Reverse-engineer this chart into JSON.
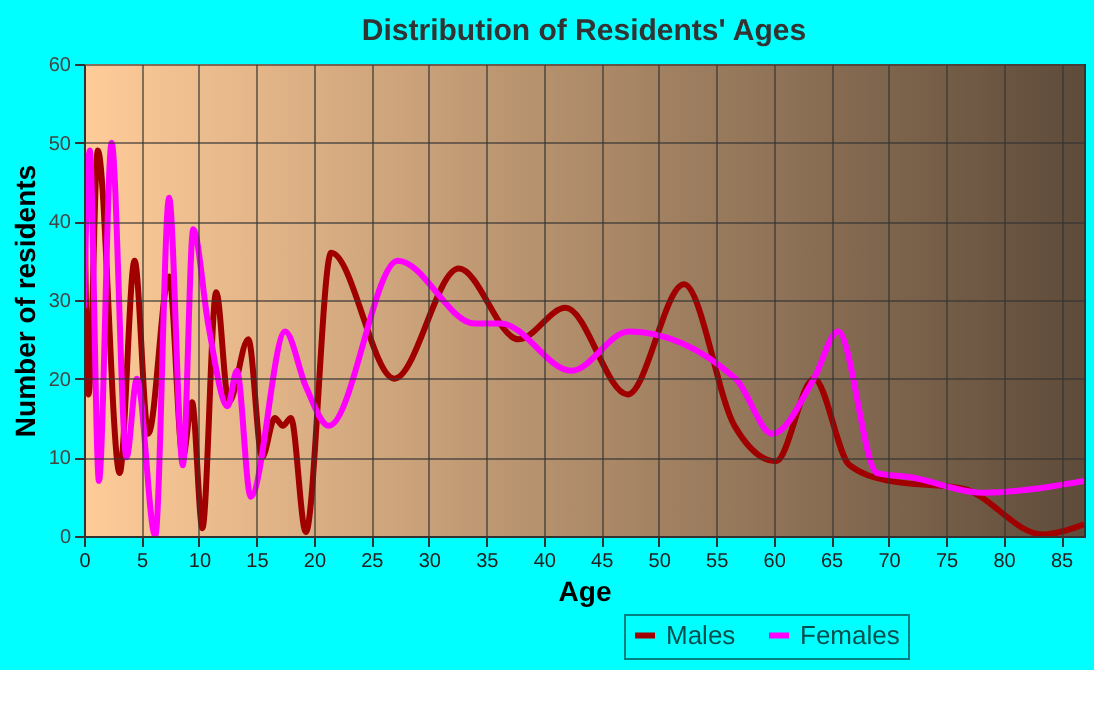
{
  "chart_data": {
    "type": "line",
    "title": "Distribution of Residents' Ages",
    "xlabel": "Age",
    "ylabel": "Number of residents",
    "xlim": [
      0,
      87
    ],
    "xticks": [
      0,
      5,
      10,
      15,
      20,
      25,
      30,
      35,
      40,
      45,
      50,
      55,
      60,
      65,
      70,
      75,
      80,
      85
    ],
    "ylim": [
      0,
      60
    ],
    "yticks": [
      0,
      10,
      20,
      30,
      40,
      50,
      60
    ],
    "grid": true,
    "legend": "bottom right",
    "marker": "none",
    "line_style": "solid",
    "series": [
      {
        "name": "Males",
        "color": "#a00000",
        "x": [
          0,
          0.4,
          1.2,
          3.1,
          4.4,
          5.6,
          7.4,
          8.6,
          9.4,
          10.3,
          11.5,
          12.6,
          14.3,
          15.5,
          16.6,
          17.3,
          18,
          19.3,
          21.5,
          27,
          32.6,
          37.8,
          41.9,
          47.3,
          52.2,
          56.6,
          60.2,
          63.5,
          66.6,
          70.1,
          76.5,
          83.4,
          87
        ],
        "values": [
          47,
          18,
          49,
          8,
          35,
          13,
          33,
          10,
          17,
          1,
          31,
          17,
          25,
          10,
          15,
          14,
          15,
          0.5,
          36,
          20,
          34,
          25,
          29,
          18,
          32,
          14,
          9.5,
          20,
          9,
          7,
          6,
          0.2,
          1.5
        ]
      },
      {
        "name": "Females",
        "color": "#ff00ff",
        "x": [
          0,
          0.5,
          1.3,
          2.4,
          3.7,
          4.6,
          6.2,
          7.4,
          8.6,
          9.5,
          10.8,
          12.5,
          13.3,
          14.5,
          17.5,
          19.3,
          21.3,
          27.3,
          34,
          36.3,
          42.4,
          47.4,
          56.7,
          59.9,
          63.5,
          65.6,
          69,
          71.8,
          78.2,
          87
        ],
        "values": [
          29,
          49,
          7,
          50,
          10,
          20,
          0,
          43,
          9,
          39,
          27,
          16.5,
          21,
          5,
          26,
          19,
          14,
          35,
          27,
          27,
          21,
          26,
          20,
          13,
          20,
          26,
          8,
          7.5,
          5.5,
          7
        ]
      }
    ]
  }
}
